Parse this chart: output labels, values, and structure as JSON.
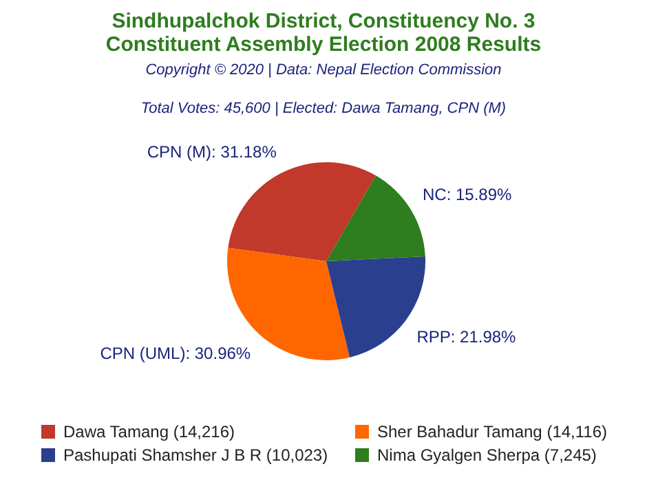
{
  "chart_data": {
    "type": "pie",
    "title": "Sindhupalchok District, Constituency No. 3\nConstituent Assembly Election 2008 Results",
    "subtitle": "Total Votes: 45,600 | Elected: Dawa Tamang, CPN (M)",
    "annotations": [
      "Copyright © 2020 | Data: Nepal Election Commission"
    ],
    "categories": [
      "Dawa Tamang (14,216)",
      "Sher Bahadur Tamang (14,116)",
      "Pashupati Shamsher J B R (10,023)",
      "Nima Gyalgen Sherpa (7,245)"
    ],
    "values": [
      31.18,
      30.96,
      21.98,
      15.89
    ],
    "value_labels": [
      "CPN (M): 31.18%",
      "CPN (UML): 30.96%",
      "RPP: 21.98%",
      "NC: 15.89%"
    ],
    "colors": [
      "#c0392b",
      "#ff6600",
      "#2b3f8f",
      "#2e7d1e"
    ],
    "legend": "bottom"
  }
}
